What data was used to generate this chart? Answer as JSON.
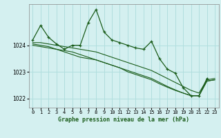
{
  "title": "Graphe pression niveau de la mer (hPa)",
  "background_color": "#d4f0f0",
  "grid_color": "#b0dede",
  "line_color": "#1a5c1a",
  "marker": "+",
  "ylim": [
    1021.65,
    1025.55
  ],
  "yticks": [
    1022,
    1023,
    1024
  ],
  "xlim": [
    -0.5,
    23.5
  ],
  "xticks": [
    0,
    1,
    2,
    3,
    4,
    5,
    6,
    7,
    8,
    9,
    10,
    11,
    12,
    13,
    14,
    15,
    16,
    17,
    18,
    19,
    20,
    21,
    22,
    23
  ],
  "series": [
    {
      "x": [
        0,
        1,
        2,
        3,
        4,
        5,
        6,
        7,
        8,
        9,
        10,
        11,
        12,
        13,
        14,
        15,
        16,
        17,
        18,
        19,
        20,
        21,
        22
      ],
      "y": [
        1024.2,
        1024.75,
        1024.3,
        1024.05,
        1023.85,
        1024.0,
        1024.0,
        1024.85,
        1025.35,
        1024.5,
        1024.2,
        1024.1,
        1024.0,
        1023.9,
        1023.85,
        1024.15,
        1023.5,
        1023.1,
        1022.95,
        1022.4,
        1022.1,
        1022.1,
        1022.75
      ],
      "has_markers": true
    },
    {
      "x": [
        0,
        1,
        2,
        3,
        4,
        5,
        6,
        7,
        8,
        9,
        10,
        11,
        12,
        13,
        14,
        15,
        16,
        17,
        18,
        19,
        20,
        21,
        22,
        23
      ],
      "y": [
        1024.1,
        1024.1,
        1024.05,
        1024.0,
        1023.95,
        1023.9,
        1023.85,
        1023.8,
        1023.75,
        1023.65,
        1023.55,
        1023.45,
        1023.35,
        1023.25,
        1023.15,
        1023.05,
        1022.9,
        1022.75,
        1022.6,
        1022.45,
        1022.3,
        1022.2,
        1022.7,
        1022.75
      ],
      "has_markers": false
    },
    {
      "x": [
        0,
        1,
        2,
        3,
        4,
        5,
        6,
        7,
        8,
        9,
        10,
        11,
        12,
        13,
        14,
        15,
        16,
        17,
        18,
        19,
        20,
        21,
        22,
        23
      ],
      "y": [
        1024.05,
        1024.0,
        1023.95,
        1023.85,
        1023.75,
        1023.65,
        1023.55,
        1023.5,
        1023.45,
        1023.35,
        1023.25,
        1023.15,
        1023.05,
        1022.95,
        1022.85,
        1022.75,
        1022.6,
        1022.45,
        1022.32,
        1022.2,
        1022.1,
        1022.1,
        1022.65,
        1022.7
      ],
      "has_markers": false
    },
    {
      "x": [
        0,
        1,
        2,
        3,
        4,
        5,
        6,
        7,
        8,
        9,
        10,
        11,
        12,
        13,
        14,
        15,
        16,
        17,
        18,
        19,
        20,
        21,
        22,
        23
      ],
      "y": [
        1024.0,
        1023.95,
        1023.9,
        1023.85,
        1023.8,
        1023.75,
        1023.65,
        1023.55,
        1023.45,
        1023.35,
        1023.25,
        1023.15,
        1023.0,
        1022.9,
        1022.8,
        1022.7,
        1022.55,
        1022.42,
        1022.3,
        1022.2,
        1022.1,
        1022.1,
        1022.65,
        1022.7
      ],
      "has_markers": false
    }
  ]
}
